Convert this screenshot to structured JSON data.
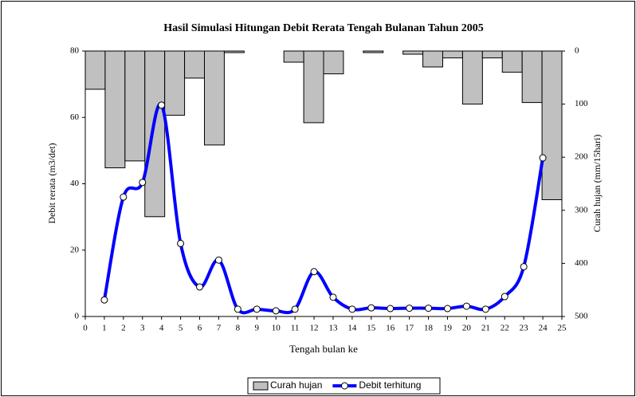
{
  "chart_data": {
    "type": "combo",
    "title": "Hasil Simulasi Hitungan Debit Rerata Tengah Bulanan Tahun 2005",
    "xlabel": "Tengah bulan ke",
    "ylabel": "Debit rerata (m3/det)",
    "y2label": "Curah hujan (mm/15hari)",
    "xlim": [
      0,
      25
    ],
    "xticks": [
      0,
      1,
      2,
      3,
      4,
      5,
      6,
      7,
      8,
      9,
      10,
      11,
      12,
      13,
      14,
      15,
      16,
      17,
      18,
      19,
      20,
      21,
      22,
      23,
      24,
      25
    ],
    "ylim": [
      0,
      80
    ],
    "yticks": [
      0,
      20,
      40,
      60,
      80
    ],
    "y2lim": [
      500,
      0
    ],
    "y2ticks": [
      0,
      100,
      200,
      300,
      400,
      500
    ],
    "legend": "bottom",
    "series": [
      {
        "name": "Curah hujan",
        "type": "bar",
        "axis": "y2",
        "color": "#c0c0c0",
        "values": [
          72,
          220,
          207,
          312,
          121,
          51,
          177,
          3,
          0,
          0,
          21,
          135,
          43,
          0,
          3,
          0,
          6,
          30,
          13,
          100,
          13,
          40,
          97,
          280
        ]
      },
      {
        "name": "Debit terhitung",
        "type": "line",
        "axis": "y",
        "color": "#0000ff",
        "x": [
          1,
          2,
          3,
          4,
          5,
          6,
          7,
          8,
          9,
          10,
          11,
          12,
          13,
          14,
          15,
          16,
          17,
          18,
          19,
          20,
          21,
          22,
          23,
          24
        ],
        "values": [
          5,
          36,
          40.4,
          63.7,
          22,
          8.9,
          17,
          2.2,
          2.2,
          1.7,
          2.2,
          13.5,
          5.8,
          2.2,
          2.6,
          2.4,
          2.5,
          2.5,
          2.4,
          3.1,
          2.2,
          6,
          15,
          47.8
        ]
      }
    ]
  }
}
